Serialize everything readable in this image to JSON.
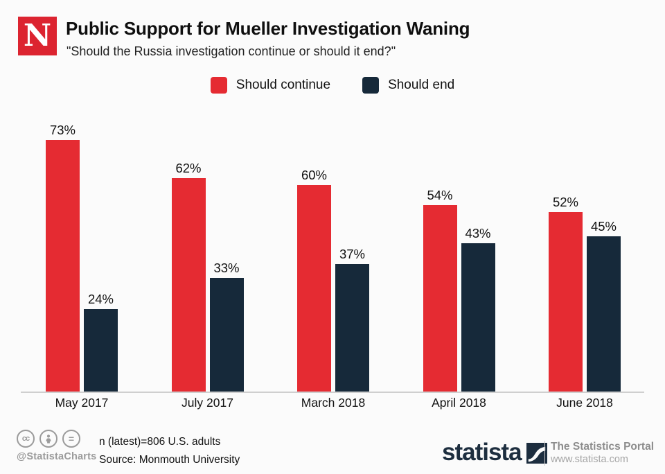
{
  "header": {
    "logo_letter": "N",
    "title": "Public Support for Mueller Investigation Waning",
    "subtitle": "\"Should the Russia investigation continue or should it end?\""
  },
  "legend": [
    {
      "label": "Should continue",
      "color": "#e52b32"
    },
    {
      "label": "Should end",
      "color": "#16293a"
    }
  ],
  "chart_data": {
    "type": "bar",
    "categories": [
      "May 2017",
      "July 2017",
      "March 2018",
      "April 2018",
      "June 2018"
    ],
    "series": [
      {
        "name": "Should continue",
        "color": "#e52b32",
        "values": [
          73,
          62,
          60,
          54,
          52
        ]
      },
      {
        "name": "Should end",
        "color": "#16293a",
        "values": [
          24,
          33,
          37,
          43,
          45
        ]
      }
    ],
    "value_suffix": "%",
    "title": "Public Support for Mueller Investigation Waning",
    "xlabel": "",
    "ylabel": "",
    "ylim": [
      0,
      84
    ],
    "grid": false,
    "legend_position": "top",
    "value_labels_shown": true
  },
  "footer": {
    "icons": [
      "cc-icon",
      "attribution-icon",
      "equal-icon"
    ],
    "credit": "@StatistaCharts",
    "note": "n (latest)=806 U.S. adults",
    "source": "Source: Monmouth University",
    "brand": "statista",
    "portal": "The Statistics Portal",
    "url": "www.statista.com"
  },
  "colors": {
    "background": "#fbfbfb",
    "bar_continue": "#e52b32",
    "bar_end": "#16293a",
    "axis_line": "#cfcfcf",
    "newsweek_red": "#dc2430",
    "statista_navy": "#1d2e3f",
    "footer_gray": "#9b9b9b"
  }
}
